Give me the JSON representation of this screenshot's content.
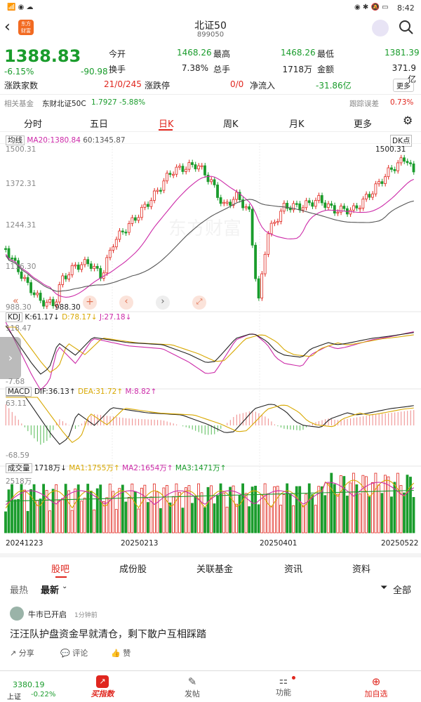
{
  "status": {
    "left_icons": "wifi dots cloud",
    "time": "8:42",
    "right_icons": "eye bluetooth mute battery"
  },
  "header": {
    "logo_line1": "东方",
    "logo_line2": "财富",
    "name": "北证50",
    "code": "899050"
  },
  "quote": {
    "price": "1388.83",
    "pct": "-6.15%",
    "change": "-90.98",
    "r1": [
      {
        "k": "今开",
        "v": "1468.26",
        "c": "grn"
      },
      {
        "k": "最高",
        "v": "1468.26",
        "c": "grn"
      },
      {
        "k": "最低",
        "v": "1381.39",
        "c": "grn"
      }
    ],
    "r2": [
      {
        "k": "换手",
        "v": "7.38%",
        "c": ""
      },
      {
        "k": "总手",
        "v": "1718万",
        "c": ""
      },
      {
        "k": "金额",
        "v": "371.9亿",
        "c": ""
      }
    ],
    "adv_k": "涨跌家数",
    "adv_v": "21/0/245",
    "lim_k": "涨跌停",
    "lim_v": "0/0",
    "net_k": "净流入",
    "net_v": "-31.86亿",
    "more": "更多"
  },
  "fund": {
    "label": "相关基金",
    "name": "东财北证50C",
    "price": "1.7927",
    "pct": "-5.88%",
    "track_k": "跟踪误差",
    "track_v": "0.73%"
  },
  "tabs": [
    "分时",
    "五日",
    "日K",
    "周K",
    "月K",
    "更多"
  ],
  "kline": {
    "junxian": "均线",
    "ma20": "MA20:1380.84",
    "ma60": "60:1345.87",
    "dk": "DK点",
    "y_top": "1500.31",
    "y2": "1372.31",
    "y3": "1244.31",
    "y4": "1116.30",
    "y_bot": "988.30",
    "max_label": "1500.31",
    "min_label": "988.30",
    "watermark": "东方财富"
  },
  "kdj": {
    "name": "KDJ",
    "k": "K:61.17",
    "d": "D:78.17",
    "j": "J:27.18",
    "top": "118.47",
    "bot": "-7.68"
  },
  "macd": {
    "name": "MACD",
    "dif": "DIF:36.13",
    "dea": "DEA:31.72",
    "m": "M:8.82",
    "top": "63.11",
    "bot": "-68.59"
  },
  "vol": {
    "name": "成交量",
    "v": "1718万",
    "ma1": "MA1:1755万",
    "ma2": "MA2:1654万",
    "ma3": "MA3:1471万",
    "top": "2518万"
  },
  "dates": [
    "20241223",
    "20250213",
    "20250401",
    "20250522"
  ],
  "section_tabs": [
    "股吧",
    "成份股",
    "关联基金",
    "资讯",
    "资料"
  ],
  "sort": {
    "hot": "最热",
    "new": "最新",
    "filter": "全部"
  },
  "post": {
    "user": "牛市已开启",
    "time": "1分钟前",
    "text": "汪汪队护盘资金早就清仓，剩下散户互相踩踏",
    "share": "分享",
    "comment": "评论",
    "like": "赞"
  },
  "bottom": {
    "index": "3380.19",
    "index_name": "上证",
    "index_pct": "-0.22%",
    "items": [
      "买指数",
      "发帖",
      "功能",
      "加自选"
    ]
  }
}
